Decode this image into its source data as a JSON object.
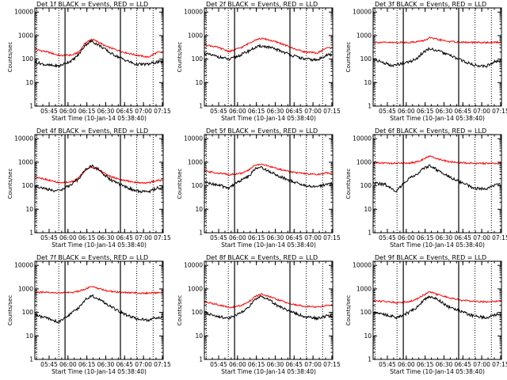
{
  "figure": {
    "colors": {
      "events": "#000000",
      "lld": "#ff0000",
      "axes": "#000000"
    }
  },
  "chart_data": [
    {
      "type": "line",
      "panel": "Det 1f",
      "title": "Det 1f BLACK = Events, RED = LLD",
      "xlabel": "Start Time (10-Jan-14 05:38:40)",
      "ylabel": "Counts/sec",
      "x_ticks": [
        "05:45",
        "06:00",
        "06:15",
        "06:30",
        "06:45",
        "07:00",
        "07:15"
      ],
      "y_ticks": [
        "1",
        "10",
        "100",
        "1000",
        "10000"
      ],
      "xlim_min": [
        -5,
        97
      ],
      "ylim": [
        1,
        15000
      ],
      "y_scale": "log",
      "dotted_lines_min": [
        -3.5,
        14,
        76,
        89
      ],
      "solid_lines_min": [
        19,
        63
      ],
      "series": [
        {
          "key": "lld",
          "x_min": [
            -5,
            5,
            15,
            25,
            30,
            35,
            40,
            45,
            50,
            55,
            65,
            75,
            85,
            92
          ],
          "values": [
            260,
            200,
            140,
            150,
            200,
            480,
            700,
            550,
            380,
            300,
            200,
            150,
            120,
            190
          ]
        },
        {
          "key": "events",
          "x_min": [
            -5,
            5,
            14,
            25,
            30,
            35,
            40,
            45,
            50,
            55,
            65,
            75,
            85,
            92
          ],
          "values": [
            75,
            55,
            50,
            90,
            160,
            400,
            580,
            420,
            280,
            180,
            100,
            60,
            60,
            75
          ]
        }
      ]
    },
    {
      "type": "line",
      "panel": "Det 2f",
      "title": "Det 2f BLACK = Events, RED = LLD",
      "xlabel": "Start Time (10-Jan-14 05:38:40)",
      "ylabel": "Counts/sec",
      "x_ticks": [
        "05:45",
        "06:00",
        "06:15",
        "06:30",
        "06:45",
        "07:00",
        "07:15"
      ],
      "y_ticks": [
        "1",
        "10",
        "100",
        "1000",
        "10000"
      ],
      "xlim_min": [
        -5,
        97
      ],
      "ylim": [
        1,
        15000
      ],
      "y_scale": "log",
      "dotted_lines_min": [
        -3.5,
        14,
        76,
        89
      ],
      "solid_lines_min": [
        19,
        63
      ],
      "series": [
        {
          "key": "lld",
          "x_min": [
            -5,
            5,
            15,
            25,
            35,
            40,
            45,
            55,
            65,
            75,
            85,
            92
          ],
          "values": [
            420,
            320,
            210,
            320,
            650,
            750,
            680,
            480,
            290,
            200,
            180,
            300
          ]
        },
        {
          "key": "events",
          "x_min": [
            -5,
            5,
            15,
            25,
            35,
            40,
            45,
            55,
            65,
            75,
            85,
            92
          ],
          "values": [
            170,
            130,
            95,
            160,
            300,
            360,
            330,
            230,
            140,
            100,
            90,
            150
          ]
        }
      ]
    },
    {
      "type": "line",
      "panel": "Det 3f",
      "title": "Det 3f BLACK = Events, RED = LLD",
      "xlabel": "Start Time (10-Jan-14 05:38:40)",
      "ylabel": "Counts/sec",
      "x_ticks": [
        "05:45",
        "06:00",
        "06:15",
        "06:30",
        "06:45",
        "07:00",
        "07:15"
      ],
      "y_ticks": [
        "1",
        "10",
        "100",
        "1000",
        "10000"
      ],
      "xlim_min": [
        -5,
        97
      ],
      "ylim": [
        1,
        15000
      ],
      "y_scale": "log",
      "dotted_lines_min": [
        -3.5,
        14,
        76,
        89
      ],
      "solid_lines_min": [
        19,
        63
      ],
      "series": [
        {
          "key": "lld",
          "x_min": [
            -5,
            10,
            25,
            35,
            40,
            45,
            55,
            70,
            85,
            92
          ],
          "values": [
            520,
            500,
            520,
            600,
            800,
            700,
            560,
            510,
            500,
            520
          ]
        },
        {
          "key": "events",
          "x_min": [
            -5,
            5,
            10,
            15,
            25,
            30,
            35,
            40,
            45,
            55,
            65,
            75,
            85,
            92
          ],
          "values": [
            100,
            65,
            50,
            60,
            80,
            110,
            200,
            280,
            240,
            150,
            90,
            55,
            50,
            80
          ]
        }
      ]
    },
    {
      "type": "line",
      "panel": "Det 4f",
      "title": "Det 4f BLACK = Events, RED = LLD",
      "xlabel": "Start Time (10-Jan-14 05:38:40)",
      "ylabel": "Counts/sec",
      "x_ticks": [
        "05:45",
        "06:00",
        "06:15",
        "06:30",
        "06:45",
        "07:00",
        "07:15"
      ],
      "y_ticks": [
        "1",
        "10",
        "100",
        "1000",
        "10000"
      ],
      "xlim_min": [
        -5,
        97
      ],
      "ylim": [
        1,
        15000
      ],
      "y_scale": "log",
      "dotted_lines_min": [
        -3.5,
        14,
        76,
        89
      ],
      "solid_lines_min": [
        19,
        63
      ],
      "series": [
        {
          "key": "lld",
          "x_min": [
            -5,
            5,
            15,
            25,
            30,
            35,
            40,
            45,
            50,
            55,
            65,
            75,
            85,
            92
          ],
          "values": [
            250,
            180,
            130,
            150,
            230,
            450,
            620,
            500,
            350,
            250,
            170,
            140,
            130,
            170
          ]
        },
        {
          "key": "events",
          "x_min": [
            -5,
            5,
            14,
            25,
            30,
            35,
            40,
            45,
            50,
            55,
            65,
            75,
            85,
            92
          ],
          "values": [
            100,
            70,
            60,
            120,
            200,
            480,
            700,
            520,
            300,
            180,
            100,
            60,
            55,
            80
          ]
        }
      ]
    },
    {
      "type": "line",
      "panel": "Det 5f",
      "title": "Det 5f BLACK = Events, RED = LLD",
      "xlabel": "Start Time (10-Jan-14 05:38:40)",
      "ylabel": "Counts/sec",
      "x_ticks": [
        "05:45",
        "06:00",
        "06:15",
        "06:30",
        "06:45",
        "07:00",
        "07:15"
      ],
      "y_ticks": [
        "1",
        "10",
        "100",
        "1000",
        "10000"
      ],
      "xlim_min": [
        -5,
        97
      ],
      "ylim": [
        1,
        15000
      ],
      "y_scale": "log",
      "dotted_lines_min": [
        -3.5,
        14,
        76,
        89
      ],
      "solid_lines_min": [
        19,
        63
      ],
      "series": [
        {
          "key": "lld",
          "x_min": [
            -5,
            5,
            15,
            25,
            30,
            35,
            40,
            45,
            55,
            65,
            75,
            85,
            92
          ],
          "values": [
            420,
            350,
            300,
            340,
            450,
            750,
            850,
            700,
            500,
            380,
            320,
            300,
            350
          ]
        },
        {
          "key": "events",
          "x_min": [
            -5,
            5,
            14,
            20,
            25,
            30,
            35,
            40,
            45,
            55,
            65,
            75,
            85,
            92
          ],
          "values": [
            140,
            110,
            80,
            130,
            180,
            250,
            500,
            620,
            450,
            250,
            150,
            100,
            90,
            120
          ]
        }
      ]
    },
    {
      "type": "line",
      "panel": "Det 6f",
      "title": "Det 6f BLACK = Events, RED = LLD",
      "xlabel": "Start Time (10-Jan-14 05:38:40)",
      "ylabel": "Counts/sec",
      "x_ticks": [
        "05:45",
        "06:00",
        "06:15",
        "06:30",
        "06:45",
        "07:00",
        "07:15"
      ],
      "y_ticks": [
        "1",
        "10",
        "100",
        "1000",
        "10000"
      ],
      "xlim_min": [
        -5,
        97
      ],
      "ylim": [
        1,
        15000
      ],
      "y_scale": "log",
      "dotted_lines_min": [
        -3.5,
        14,
        76,
        89
      ],
      "solid_lines_min": [
        19,
        63
      ],
      "series": [
        {
          "key": "lld",
          "x_min": [
            -5,
            10,
            25,
            30,
            35,
            40,
            45,
            50,
            55,
            65,
            75,
            85,
            92
          ],
          "values": [
            950,
            900,
            930,
            1050,
            1350,
            1800,
            1500,
            1200,
            1050,
            950,
            900,
            880,
            900
          ]
        },
        {
          "key": "events",
          "x_min": [
            -5,
            5,
            10,
            14,
            20,
            25,
            30,
            35,
            40,
            45,
            55,
            65,
            75,
            85,
            92
          ],
          "values": [
            130,
            110,
            70,
            60,
            150,
            220,
            300,
            550,
            700,
            500,
            250,
            140,
            80,
            70,
            110
          ]
        }
      ]
    },
    {
      "type": "line",
      "panel": "Det 7f",
      "title": "Det 7f BLACK = Events, RED = LLD",
      "xlabel": "Start Time (10-Jan-14 05:38:40)",
      "ylabel": "Counts/sec",
      "x_ticks": [
        "05:45",
        "06:00",
        "06:15",
        "06:30",
        "06:45",
        "07:00",
        "07:15"
      ],
      "y_ticks": [
        "1",
        "10",
        "100",
        "1000",
        "10000"
      ],
      "xlim_min": [
        -5,
        97
      ],
      "ylim": [
        1,
        15000
      ],
      "y_scale": "log",
      "dotted_lines_min": [
        -3.5,
        14,
        76,
        89
      ],
      "solid_lines_min": [
        19,
        63
      ],
      "series": [
        {
          "key": "lld",
          "x_min": [
            -5,
            10,
            25,
            30,
            35,
            40,
            45,
            50,
            55,
            65,
            75,
            85,
            92
          ],
          "values": [
            720,
            680,
            700,
            820,
            1000,
            1250,
            1050,
            900,
            780,
            700,
            680,
            650,
            700
          ]
        },
        {
          "key": "events",
          "x_min": [
            -5,
            5,
            10,
            14,
            20,
            25,
            30,
            35,
            40,
            45,
            55,
            65,
            75,
            85,
            92
          ],
          "values": [
            80,
            55,
            45,
            40,
            65,
            100,
            160,
            350,
            520,
            400,
            180,
            90,
            55,
            45,
            60
          ]
        }
      ]
    },
    {
      "type": "line",
      "panel": "Det 8f",
      "title": "Det 8f BLACK = Events, RED = LLD",
      "xlabel": "Start Time (10-Jan-14 05:38:40)",
      "ylabel": "Counts/sec",
      "x_ticks": [
        "05:45",
        "06:00",
        "06:15",
        "06:30",
        "06:45",
        "07:00",
        "07:15"
      ],
      "y_ticks": [
        "1",
        "10",
        "100",
        "1000",
        "10000"
      ],
      "xlim_min": [
        -5,
        97
      ],
      "ylim": [
        1,
        15000
      ],
      "y_scale": "log",
      "dotted_lines_min": [
        -3.5,
        14,
        76,
        89
      ],
      "solid_lines_min": [
        19,
        63
      ],
      "series": [
        {
          "key": "lld",
          "x_min": [
            -5,
            5,
            15,
            25,
            30,
            35,
            40,
            45,
            55,
            65,
            75,
            85,
            92
          ],
          "values": [
            280,
            220,
            160,
            200,
            280,
            450,
            600,
            500,
            320,
            220,
            180,
            170,
            200
          ]
        },
        {
          "key": "events",
          "x_min": [
            -5,
            5,
            14,
            25,
            30,
            35,
            40,
            45,
            50,
            55,
            65,
            75,
            85,
            92
          ],
          "values": [
            100,
            70,
            55,
            100,
            160,
            330,
            480,
            400,
            250,
            170,
            100,
            65,
            55,
            70
          ]
        }
      ]
    },
    {
      "type": "line",
      "panel": "Det 9f",
      "title": "Det 9f BLACK = Events, RED = LLD",
      "xlabel": "Start Time (10-Jan-14 05:38:40)",
      "ylabel": "Counts/sec",
      "x_ticks": [
        "05:45",
        "06:00",
        "06:15",
        "06:30",
        "06:45",
        "07:00",
        "07:15"
      ],
      "y_ticks": [
        "1",
        "10",
        "100",
        "1000",
        "10000"
      ],
      "xlim_min": [
        -5,
        97
      ],
      "ylim": [
        1,
        15000
      ],
      "y_scale": "log",
      "dotted_lines_min": [
        -3.5,
        14,
        76,
        89
      ],
      "solid_lines_min": [
        19,
        63
      ],
      "series": [
        {
          "key": "lld",
          "x_min": [
            -5,
            5,
            15,
            25,
            30,
            35,
            40,
            45,
            55,
            65,
            75,
            85,
            92
          ],
          "values": [
            320,
            290,
            260,
            300,
            380,
            550,
            750,
            600,
            420,
            330,
            300,
            280,
            300
          ]
        },
        {
          "key": "events",
          "x_min": [
            -5,
            5,
            14,
            25,
            30,
            35,
            40,
            45,
            50,
            55,
            65,
            75,
            85,
            92
          ],
          "values": [
            110,
            80,
            60,
            110,
            170,
            320,
            480,
            400,
            260,
            170,
            110,
            70,
            60,
            80
          ]
        }
      ]
    }
  ]
}
